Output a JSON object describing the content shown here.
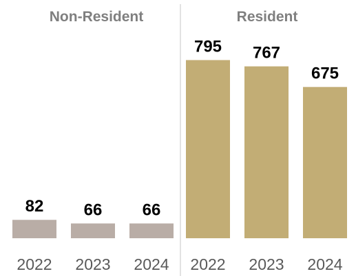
{
  "chart_data": {
    "type": "bar",
    "panels": [
      {
        "title": "Non-Resident",
        "categories": [
          "2022",
          "2023",
          "2024"
        ],
        "values": [
          82,
          66,
          66
        ],
        "color": "#b9ada6"
      },
      {
        "title": "Resident",
        "categories": [
          "2022",
          "2023",
          "2024"
        ],
        "values": [
          795,
          767,
          675
        ],
        "color": "#c2ad75"
      }
    ],
    "ylim": [
      0,
      1000
    ],
    "grid": false,
    "legend": "none",
    "colors": {
      "divider": "#d9d9d9",
      "title": "#7f7f7f",
      "tick": "#595959"
    }
  }
}
